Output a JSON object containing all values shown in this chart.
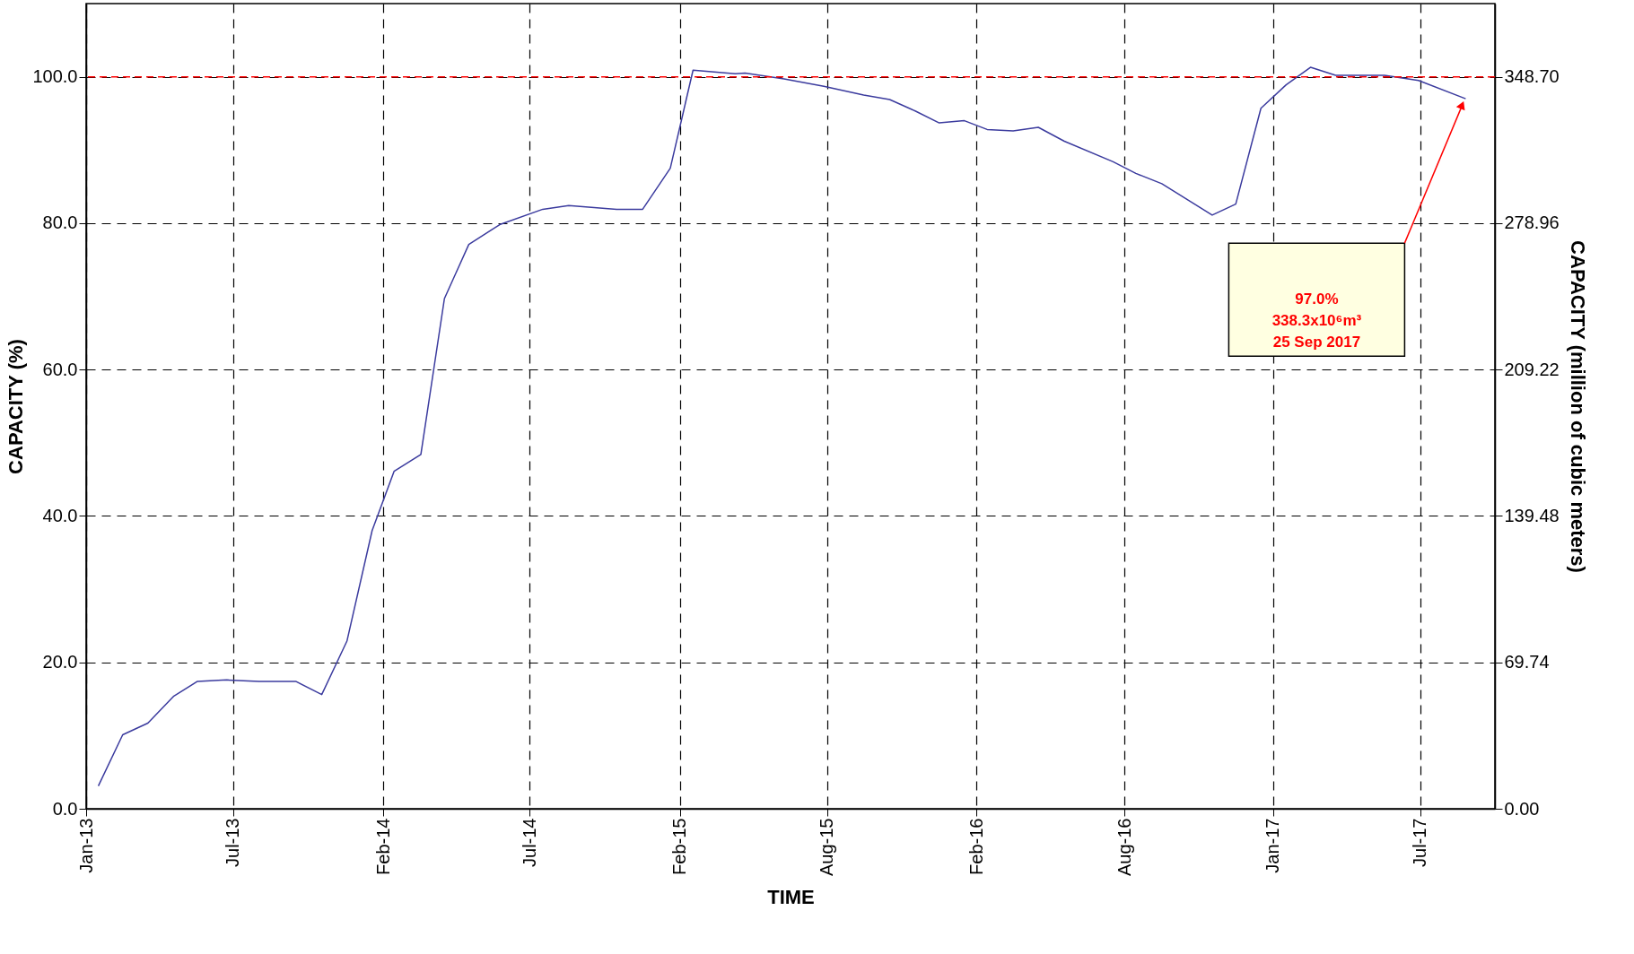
{
  "chart_data": {
    "type": "line",
    "xlabel": "TIME",
    "ylabel": "CAPACITY (%)",
    "y2label": "CAPACITY (million of cubic meters)",
    "x": [
      "2013-02-15",
      "2013-03-17",
      "2013-04-17",
      "2013-05-19",
      "2013-06-17",
      "2013-07-23",
      "2013-09-01",
      "2013-10-16",
      "2013-11-17",
      "2013-12-18",
      "2014-01-18",
      "2014-02-14",
      "2014-03-19",
      "2014-04-17",
      "2014-05-17",
      "2014-06-24",
      "2014-08-16",
      "2014-09-17",
      "2014-11-15",
      "2014-12-17",
      "2015-01-20",
      "2015-02-17",
      "2015-04-10",
      "2015-04-22",
      "2015-06-09",
      "2015-07-28",
      "2015-09-15",
      "2015-10-17",
      "2015-11-18",
      "2015-12-17",
      "2016-01-17",
      "2016-02-14",
      "2016-03-17",
      "2016-04-17",
      "2016-05-19",
      "2016-07-18",
      "2016-08-15",
      "2016-09-16",
      "2016-11-17",
      "2016-12-16",
      "2017-01-16",
      "2017-02-16",
      "2017-03-18",
      "2017-04-18",
      "2017-06-17",
      "2017-07-29",
      "2017-09-25"
    ],
    "series": [
      {
        "color": "#3b3b9e",
        "values": [
          3.1,
          10.1,
          11.7,
          15.4,
          17.4,
          17.6,
          17.4,
          17.4,
          15.6,
          22.9,
          38.0,
          46.1,
          48.4,
          69.7,
          77.1,
          79.8,
          81.9,
          82.4,
          81.9,
          81.9,
          87.5,
          100.9,
          100.4,
          100.5,
          99.7,
          98.7,
          97.5,
          96.9,
          95.3,
          93.7,
          94.0,
          92.8,
          92.6,
          93.1,
          91.2,
          88.4,
          86.8,
          85.4,
          81.1,
          82.6,
          95.7,
          98.9,
          101.3,
          100.2,
          100.2,
          99.5,
          97.0
        ]
      }
    ],
    "xlim": [
      "2013-01-31",
      "2017-10-31"
    ],
    "xticks": [
      {
        "value": "2013-01-31",
        "label": "Jan-13"
      },
      {
        "value": "2013-07-31",
        "label": "Jul-13"
      },
      {
        "value": "2014-02-01",
        "label": "Feb-14"
      },
      {
        "value": "2014-07-31",
        "label": "Jul-14"
      },
      {
        "value": "2015-02-01",
        "label": "Feb-15"
      },
      {
        "value": "2015-08-01",
        "label": "Aug-15"
      },
      {
        "value": "2016-02-01",
        "label": "Feb-16"
      },
      {
        "value": "2016-08-01",
        "label": "Aug-16"
      },
      {
        "value": "2017-01-31",
        "label": "Jan-17"
      },
      {
        "value": "2017-07-31",
        "label": "Jul-17"
      }
    ],
    "ylim": [
      0,
      110
    ],
    "yticks": [
      {
        "value": 0,
        "label": "0.0"
      },
      {
        "value": 20,
        "label": "20.0"
      },
      {
        "value": 40,
        "label": "40.0"
      },
      {
        "value": 60,
        "label": "60.0"
      },
      {
        "value": 80,
        "label": "80.0"
      },
      {
        "value": 100,
        "label": "100.0"
      }
    ],
    "y2lim": [
      0,
      383.57
    ],
    "y2ticks": [
      {
        "value": 0,
        "label": "0.00"
      },
      69.74,
      139.48,
      209.22,
      278.96,
      {
        "value": 348.7,
        "label": "348.70"
      }
    ],
    "ref_lines": [
      {
        "axis": "y",
        "value": 100,
        "color": "#ff0000",
        "line_style": "dashed"
      }
    ],
    "annotations": [
      "97.0%\n338.3x10⁶m³\n25 Sep 2017"
    ],
    "grid": true,
    "marker": "none",
    "line_style": "solid"
  }
}
